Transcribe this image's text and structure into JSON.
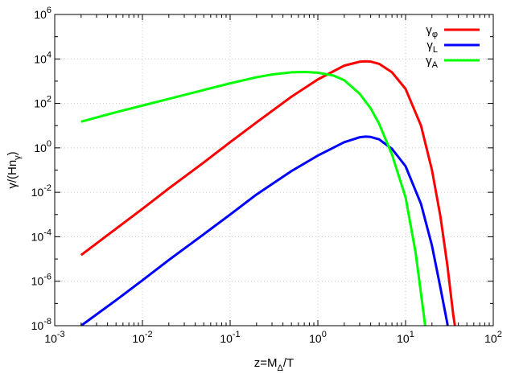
{
  "chart_data": {
    "type": "line",
    "xscale": "log",
    "yscale": "log",
    "xlim": [
      0.001,
      100
    ],
    "ylim": [
      1e-08,
      1000000
    ],
    "grid": true,
    "legend_position": "top-right",
    "xlabel": {
      "base": "z=M",
      "sub": "Δ",
      "tail": "/T"
    },
    "ylabel": {
      "base": "γ/(Hn",
      "sub": "γ",
      "tail": ")"
    },
    "x_ticks": [
      {
        "value": 0.001,
        "base": "10",
        "exp": "-3"
      },
      {
        "value": 0.01,
        "base": "10",
        "exp": "-2"
      },
      {
        "value": 0.1,
        "base": "10",
        "exp": "-1"
      },
      {
        "value": 1,
        "base": "10",
        "exp": "0"
      },
      {
        "value": 10,
        "base": "10",
        "exp": "1"
      },
      {
        "value": 100,
        "base": "10",
        "exp": "2"
      }
    ],
    "y_ticks": [
      {
        "value": 1e-08,
        "base": "10",
        "exp": "-8"
      },
      {
        "value": 1e-06,
        "base": "10",
        "exp": "-6"
      },
      {
        "value": 0.0001,
        "base": "10",
        "exp": "-4"
      },
      {
        "value": 0.01,
        "base": "10",
        "exp": "-2"
      },
      {
        "value": 1,
        "base": "10",
        "exp": "0"
      },
      {
        "value": 100,
        "base": "10",
        "exp": "2"
      },
      {
        "value": 10000,
        "base": "10",
        "exp": "4"
      },
      {
        "value": 1000000,
        "base": "10",
        "exp": "6"
      }
    ],
    "series": [
      {
        "name": "γφ",
        "label_base": "γ",
        "label_sub": "φ",
        "color": "#ff0000",
        "x": [
          0.002,
          0.005,
          0.01,
          0.02,
          0.05,
          0.1,
          0.2,
          0.5,
          1,
          2,
          3,
          3.5,
          4,
          5,
          7,
          10,
          15,
          20,
          25,
          30,
          35,
          40
        ],
        "y": [
          1.5e-05,
          0.00023,
          0.0018,
          0.015,
          0.22,
          1.8,
          14,
          200,
          1200,
          5000,
          7500,
          7800,
          7600,
          6000,
          2500,
          450,
          10,
          0.1,
          0.0008,
          5e-06,
          3e-08,
          1e-09
        ]
      },
      {
        "name": "γL",
        "label_base": "γ",
        "label_sub": "L",
        "color": "#0000ff",
        "x": [
          0.002,
          0.005,
          0.01,
          0.02,
          0.05,
          0.1,
          0.2,
          0.5,
          1,
          2,
          3,
          3.5,
          4,
          5,
          7,
          10,
          15,
          20,
          25,
          30,
          32
        ],
        "y": [
          1e-08,
          1.4e-07,
          1.1e-06,
          9e-06,
          0.00013,
          0.001,
          0.008,
          0.09,
          0.45,
          1.8,
          3,
          3.2,
          3.1,
          2.4,
          0.9,
          0.15,
          0.003,
          4e-05,
          5e-07,
          1.2e-08,
          1e-09
        ]
      },
      {
        "name": "γA",
        "label_base": "γ",
        "label_sub": "A",
        "color": "#00ff00",
        "x": [
          0.002,
          0.005,
          0.01,
          0.02,
          0.05,
          0.1,
          0.2,
          0.3,
          0.5,
          0.7,
          1,
          1.5,
          2,
          3,
          4,
          5,
          7,
          10,
          13,
          16,
          18
        ],
        "y": [
          15,
          40,
          80,
          160,
          400,
          800,
          1500,
          2000,
          2500,
          2600,
          2400,
          1800,
          1100,
          270,
          60,
          12,
          0.5,
          0.006,
          2e-05,
          4e-08,
          1e-09
        ]
      }
    ]
  }
}
